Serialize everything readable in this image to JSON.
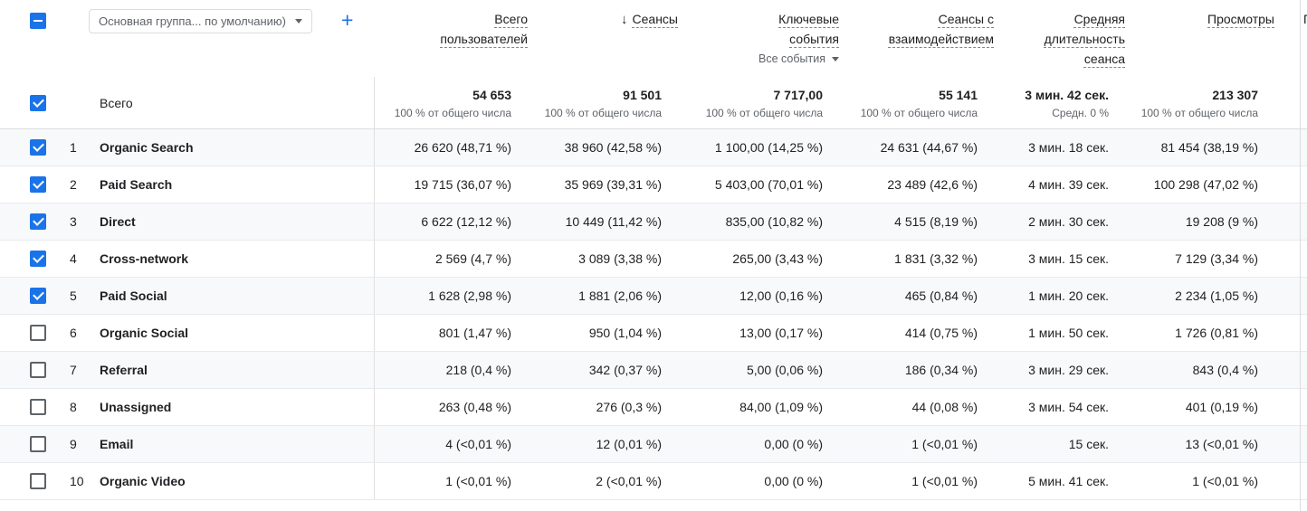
{
  "toolbar": {
    "dimension_selector": "Основная группа... по умолчанию)",
    "add_button": "+"
  },
  "columns": [
    {
      "label": "Всего пользователей"
    },
    {
      "label": "Сеансы",
      "sort": "↓"
    },
    {
      "label": "Ключевые события",
      "filter": "Все события"
    },
    {
      "label": "Сеансы с взаимодействием"
    },
    {
      "label": "Средняя длительность сеанса"
    },
    {
      "label": "Просмотры"
    }
  ],
  "partial_column_label": "П",
  "totals": {
    "label": "Всего",
    "metrics": [
      {
        "value": "54 653",
        "sub": "100 % от общего числа"
      },
      {
        "value": "91 501",
        "sub": "100 % от общего числа"
      },
      {
        "value": "7 717,00",
        "sub": "100 % от общего числа"
      },
      {
        "value": "55 141",
        "sub": "100 % от общего числа"
      },
      {
        "value": "3 мин. 42 сек.",
        "sub": "Средн. 0 %"
      },
      {
        "value": "213 307",
        "sub": "100 % от общего числа"
      }
    ]
  },
  "rows": [
    {
      "num": "1",
      "name": "Organic Search",
      "checked": true,
      "metrics": [
        "26 620 (48,71 %)",
        "38 960 (42,58 %)",
        "1 100,00 (14,25 %)",
        "24 631 (44,67 %)",
        "3 мин. 18 сек.",
        "81 454 (38,19 %)"
      ]
    },
    {
      "num": "2",
      "name": "Paid Search",
      "checked": true,
      "metrics": [
        "19 715 (36,07 %)",
        "35 969 (39,31 %)",
        "5 403,00 (70,01 %)",
        "23 489 (42,6 %)",
        "4 мин. 39 сек.",
        "100 298 (47,02 %)"
      ]
    },
    {
      "num": "3",
      "name": "Direct",
      "checked": true,
      "metrics": [
        "6 622 (12,12 %)",
        "10 449 (11,42 %)",
        "835,00 (10,82 %)",
        "4 515 (8,19 %)",
        "2 мин. 30 сек.",
        "19 208 (9 %)"
      ]
    },
    {
      "num": "4",
      "name": "Cross-network",
      "checked": true,
      "metrics": [
        "2 569 (4,7 %)",
        "3 089 (3,38 %)",
        "265,00 (3,43 %)",
        "1 831 (3,32 %)",
        "3 мин. 15 сек.",
        "7 129 (3,34 %)"
      ]
    },
    {
      "num": "5",
      "name": "Paid Social",
      "checked": true,
      "metrics": [
        "1 628 (2,98 %)",
        "1 881 (2,06 %)",
        "12,00 (0,16 %)",
        "465 (0,84 %)",
        "1 мин. 20 сек.",
        "2 234 (1,05 %)"
      ]
    },
    {
      "num": "6",
      "name": "Organic Social",
      "checked": false,
      "metrics": [
        "801 (1,47 %)",
        "950 (1,04 %)",
        "13,00 (0,17 %)",
        "414 (0,75 %)",
        "1 мин. 50 сек.",
        "1 726 (0,81 %)"
      ]
    },
    {
      "num": "7",
      "name": "Referral",
      "checked": false,
      "metrics": [
        "218 (0,4 %)",
        "342 (0,37 %)",
        "5,00 (0,06 %)",
        "186 (0,34 %)",
        "3 мин. 29 сек.",
        "843 (0,4 %)"
      ]
    },
    {
      "num": "8",
      "name": "Unassigned",
      "checked": false,
      "metrics": [
        "263 (0,48 %)",
        "276 (0,3 %)",
        "84,00 (1,09 %)",
        "44 (0,08 %)",
        "3 мин. 54 сек.",
        "401 (0,19 %)"
      ]
    },
    {
      "num": "9",
      "name": "Email",
      "checked": false,
      "metrics": [
        "4 (<0,01 %)",
        "12 (0,01 %)",
        "0,00 (0 %)",
        "1 (<0,01 %)",
        "15 сек.",
        "13 (<0,01 %)"
      ]
    },
    {
      "num": "10",
      "name": "Organic Video",
      "checked": false,
      "metrics": [
        "1 (<0,01 %)",
        "2 (<0,01 %)",
        "0,00 (0 %)",
        "1 (<0,01 %)",
        "5 мин. 41 сек.",
        "1 (<0,01 %)"
      ]
    }
  ],
  "colors": {
    "accent": "#1a73e8",
    "text": "#202124",
    "secondary_text": "#5f6368",
    "border": "#dadce0",
    "row_line": "#e8eaed",
    "row_stripe": "#f8f9fa"
  }
}
